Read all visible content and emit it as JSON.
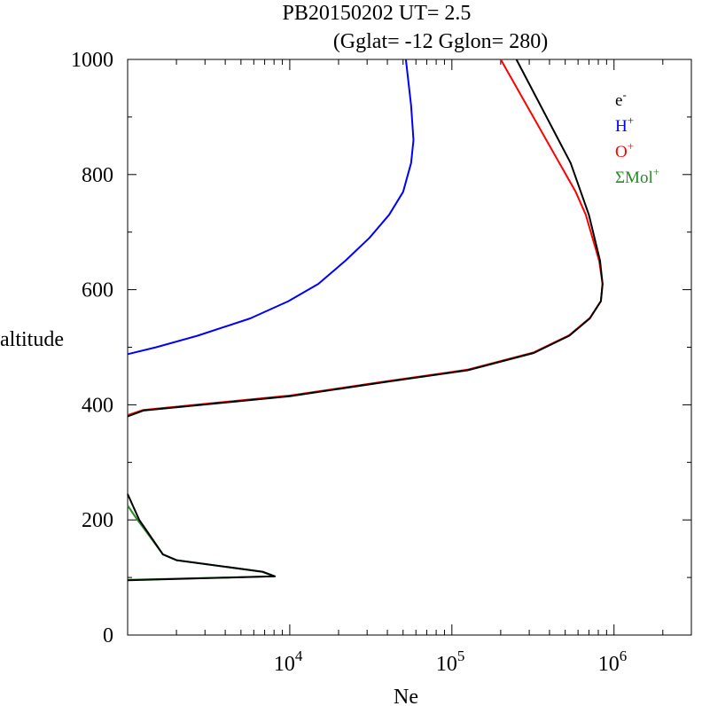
{
  "chart_data": {
    "type": "line",
    "title": "PB20150202   UT=  2.5",
    "subtitle": "(Gglat= -12   Gglon=  280)",
    "xlabel": "Ne",
    "ylabel": "altitude",
    "xscale": "log",
    "xlim": [
      1000,
      3000000
    ],
    "ylim": [
      0,
      1000
    ],
    "x_ticks": [
      {
        "value": 10000,
        "base": "10",
        "exp": "4"
      },
      {
        "value": 100000,
        "base": "10",
        "exp": "5"
      },
      {
        "value": 1000000,
        "base": "10",
        "exp": "6"
      }
    ],
    "y_ticks": [
      0,
      200,
      400,
      600,
      800,
      1000
    ],
    "legend_position": "top-right",
    "series": [
      {
        "name": "e-",
        "label_base": "e",
        "label_sup": "-",
        "color": "#000000",
        "segments": [
          [
            [
              1000,
              95
            ],
            [
              8100,
              102
            ],
            [
              6800,
              110
            ],
            [
              2000,
              130
            ],
            [
              1650,
              140
            ],
            [
              1320,
              180
            ],
            [
              1180,
              200
            ],
            [
              1000,
              245
            ]
          ],
          [
            [
              1000,
              380
            ],
            [
              1250,
              390
            ],
            [
              10000,
              415
            ],
            [
              40000,
              440
            ],
            [
              125000,
              460
            ],
            [
              320000,
              490
            ],
            [
              530000,
              520
            ],
            [
              710000,
              550
            ],
            [
              830000,
              580
            ],
            [
              850000,
              610
            ],
            [
              820000,
              650
            ],
            [
              700000,
              730
            ],
            [
              540000,
              820
            ],
            [
              250000,
              1000
            ]
          ]
        ]
      },
      {
        "name": "H+",
        "label_base": "H",
        "label_sup": "+",
        "color": "#0000ff",
        "segments": [
          [
            [
              1000,
              488
            ],
            [
              1500,
              500
            ],
            [
              2700,
              520
            ],
            [
              5700,
              550
            ],
            [
              9800,
              580
            ],
            [
              15000,
              610
            ],
            [
              22000,
              650
            ],
            [
              31000,
              690
            ],
            [
              41000,
              730
            ],
            [
              50000,
              770
            ],
            [
              56000,
              820
            ],
            [
              58000,
              860
            ],
            [
              56000,
              920
            ],
            [
              52000,
              1000
            ]
          ]
        ]
      },
      {
        "name": "O+",
        "label_base": "O",
        "label_sup": "+",
        "color": "#ff0000",
        "segments": [
          [
            [
              1000,
              382
            ],
            [
              1250,
              391
            ],
            [
              10000,
              416
            ],
            [
              40000,
              441
            ],
            [
              125000,
              461
            ],
            [
              320000,
              491
            ],
            [
              530000,
              521
            ],
            [
              710000,
              551
            ],
            [
              830000,
              580
            ],
            [
              850000,
              610
            ],
            [
              810000,
              650
            ],
            [
              670000,
              730
            ],
            [
              580000,
              770
            ],
            [
              200000,
              1000
            ]
          ]
        ]
      },
      {
        "name": "ΣMol+",
        "label_base": "ΣMol",
        "label_sup": "+",
        "color": "#228b22",
        "segments": [
          [
            [
              1000,
              96
            ],
            [
              8000,
              102
            ],
            [
              6700,
              110
            ],
            [
              2000,
              130
            ],
            [
              1650,
              140
            ],
            [
              1300,
              180
            ],
            [
              1150,
              200
            ],
            [
              1000,
              225
            ]
          ]
        ]
      }
    ]
  }
}
